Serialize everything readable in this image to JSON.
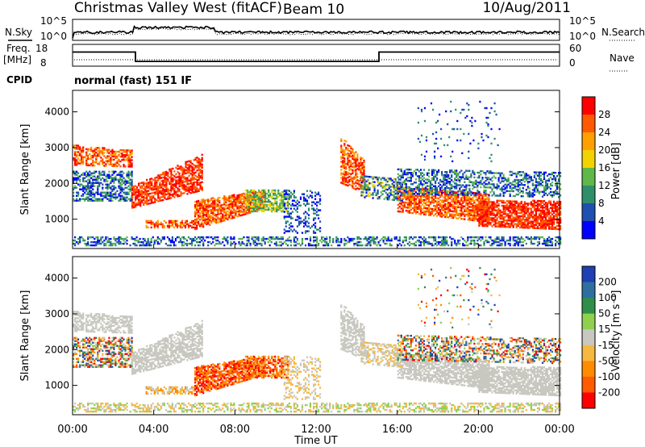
{
  "header": {
    "radar": "Christmas Valley West (fitACF)",
    "beam": "Beam 10",
    "date": "10/Aug/2011"
  },
  "side_labels": {
    "nsky": "N.Sky",
    "nsearch": "N.Search",
    "freq": "Freq.",
    "freq_unit": "[MHz]",
    "nave": "Nave",
    "cpid": "CPID"
  },
  "cpid_text": "normal (fast) 151 IF",
  "colors": {
    "power_scale": [
      "#0000ff",
      "#1f4fb0",
      "#2f8f6a",
      "#5fb84a",
      "#f2d200",
      "#ff9f00",
      "#ff5a00",
      "#ff0000"
    ],
    "velocity_scale": [
      "#1f3fb5",
      "#2e6fa0",
      "#2f8f4a",
      "#8fd14f",
      "#c8c8c0",
      "#f5b840",
      "#ff8c00",
      "#ff5a00",
      "#ff0000"
    ]
  },
  "chart_data": [
    {
      "type": "line",
      "name": "noise-panel",
      "left_label": "N.Sky",
      "right_label": "N.Search",
      "left_ticks": [
        "10^5",
        "10^0"
      ],
      "right_ticks": [
        "10^5",
        "10^0"
      ]
    },
    {
      "type": "line",
      "name": "frequency-panel",
      "left_label": "Freq. [MHz]",
      "right_label": "Nave",
      "left_ticks": [
        "18",
        "8"
      ],
      "right_ticks": [
        "60",
        "0"
      ],
      "freq_steps": [
        {
          "t": 0,
          "f": 14.5
        },
        {
          "t": 3.1,
          "f": 14.5
        },
        {
          "t": 3.1,
          "f": 10.2
        },
        {
          "t": 15.1,
          "f": 10.2
        },
        {
          "t": 15.1,
          "f": 14.5
        },
        {
          "t": 24,
          "f": 14.5
        }
      ],
      "freq_range": [
        8,
        18
      ]
    },
    {
      "type": "heatmap",
      "name": "power-panel",
      "ylabel": "Slant Range [km]",
      "colorbar_label": "Power [dB]",
      "colorbar_ticks": [
        "4",
        "8",
        "12",
        "16",
        "20",
        "24",
        "28"
      ],
      "x_range": [
        0,
        24
      ],
      "y_range": [
        180,
        4600
      ],
      "y_ticks": [
        1000,
        2000,
        3000,
        4000
      ]
    },
    {
      "type": "heatmap",
      "name": "velocity-panel",
      "ylabel": "Slant Range [km]",
      "colorbar_label": "Velocity [m s⁻¹]",
      "colorbar_ticks": [
        "200",
        "100",
        "50",
        "15",
        "-15",
        "-50",
        "-100",
        "-200"
      ],
      "x_range": [
        0,
        24
      ],
      "y_range": [
        180,
        4600
      ],
      "y_ticks": [
        1000,
        2000,
        3000,
        4000
      ],
      "xlabel": "Time UT",
      "x_ticks": [
        "00:00",
        "04:00",
        "08:00",
        "12:00",
        "16:00",
        "20:00",
        "00:00"
      ]
    }
  ]
}
